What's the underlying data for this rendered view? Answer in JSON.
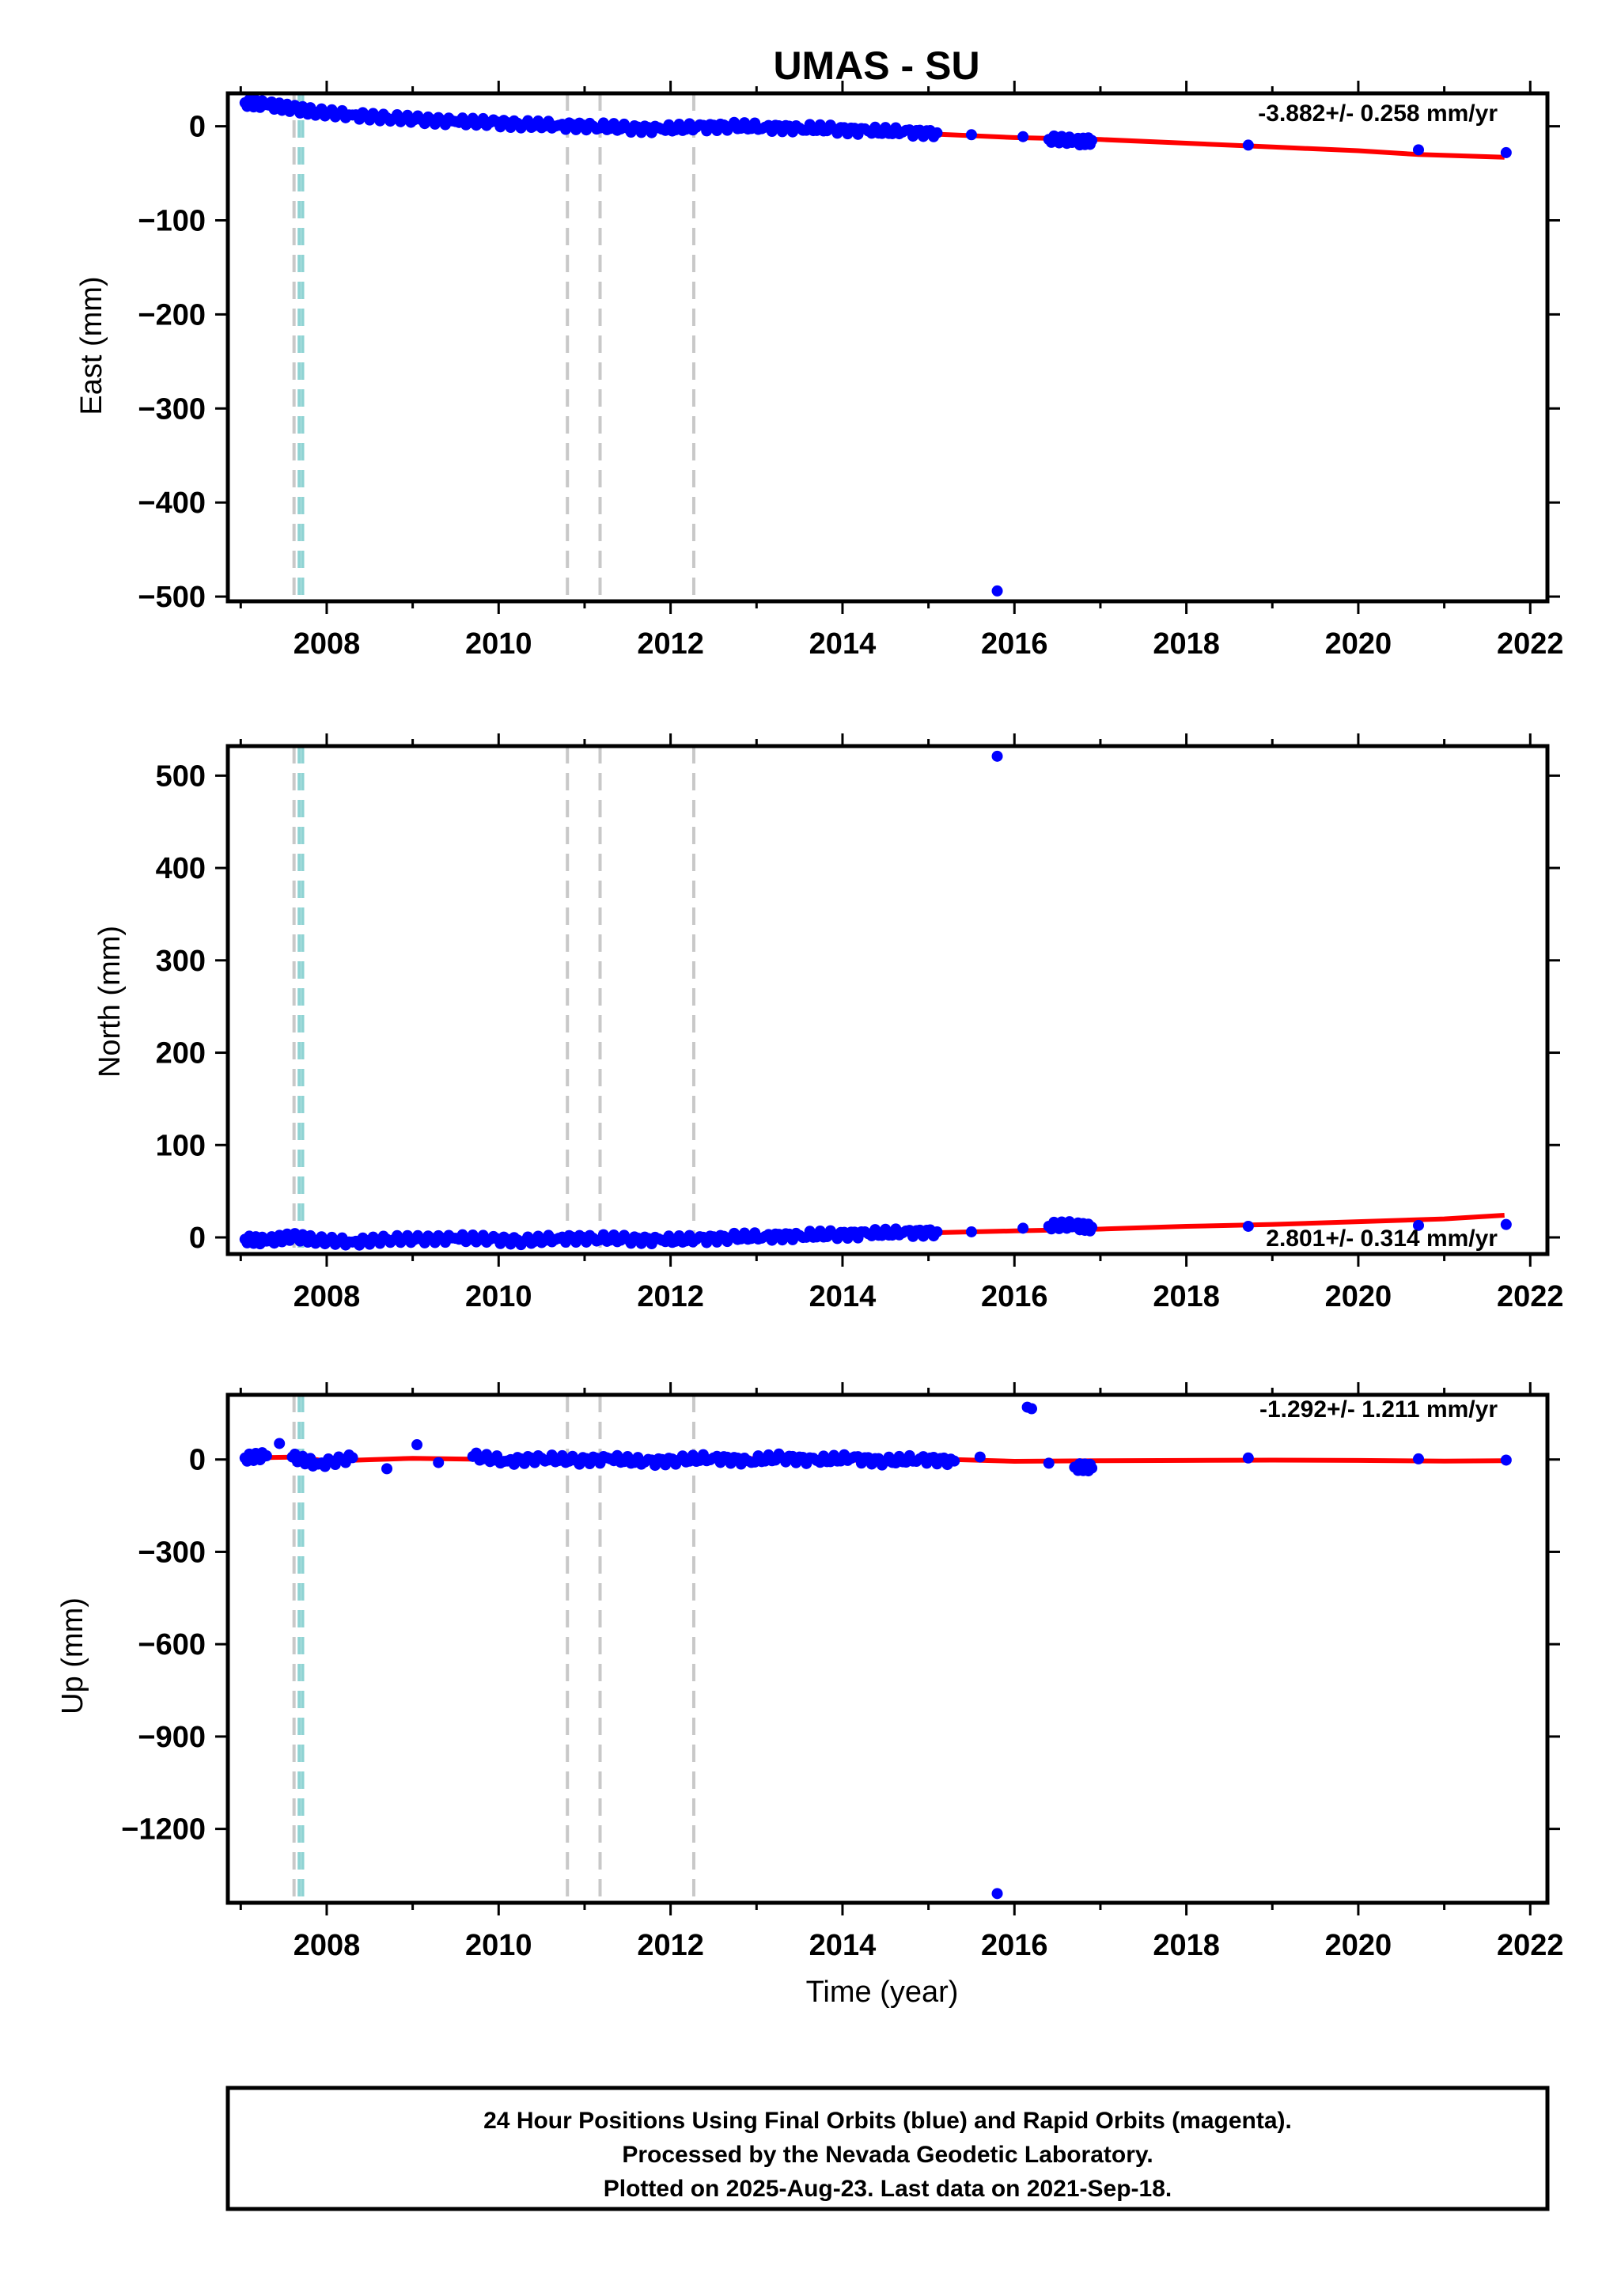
{
  "title": "UMAS - SU",
  "colors": {
    "final_orbit_points": "#0000ff",
    "model_line": "#ff0000",
    "equipment_change": "#c8c8c8",
    "earthquake": "#8fd3d3",
    "frame": "#000000"
  },
  "chart_data": [
    {
      "type": "scatter",
      "name": "east",
      "title": "UMAS - SU",
      "xlabel": "",
      "ylabel": "East (mm)",
      "xlim": [
        2006.85,
        2022.2
      ],
      "ylim": [
        -505,
        35
      ],
      "xticks": [
        2008,
        2010,
        2012,
        2014,
        2016,
        2018,
        2020,
        2022
      ],
      "yticks": [
        0,
        -100,
        -200,
        -300,
        -400,
        -500
      ],
      "ytick_labels": [
        "0",
        "−100",
        "−200",
        "−300",
        "−400",
        "−500"
      ],
      "rate_label": "-3.882+/- 0.258 mm/yr",
      "rate_position": "top-right",
      "equipment_changes": [
        2007.62,
        2010.8,
        2011.18,
        2012.27
      ],
      "earthquakes": [
        2007.68,
        2007.72
      ],
      "model": {
        "x": [
          2007.0,
          2007.67,
          2008.0,
          2009.0,
          2010.0,
          2011.0,
          2012.0,
          2012.3,
          2013.0,
          2014.0,
          2015.0,
          2016.0,
          2017.0,
          2018.0,
          2019.0,
          2020.0,
          2020.7,
          2021.7
        ],
        "y": [
          24,
          20,
          14,
          9,
          5,
          1,
          -3,
          1,
          -1,
          -4,
          -8,
          -12,
          -14,
          -18,
          -22,
          -26,
          -30,
          -33
        ]
      },
      "points": {
        "x": [
          2007.05,
          2007.3,
          2007.6,
          2007.9,
          2008.3,
          2008.7,
          2009.1,
          2009.5,
          2009.9,
          2010.3,
          2010.7,
          2011.1,
          2011.5,
          2011.9,
          2012.3,
          2012.7,
          2013.1,
          2013.5,
          2013.9,
          2014.3,
          2014.7,
          2015.1,
          2015.5,
          2015.8,
          2016.1,
          2016.4,
          2016.7,
          2016.9,
          2018.72,
          2020.7,
          2021.72
        ],
        "y": [
          25,
          23,
          19,
          15,
          12,
          9,
          7,
          5,
          4,
          2,
          1,
          0,
          -2,
          -3,
          -1,
          0,
          -1,
          -2,
          -3,
          -5,
          -6,
          -7,
          -9,
          -494,
          -11,
          -14,
          -16,
          -15,
          -20,
          -25,
          -28
        ]
      }
    },
    {
      "type": "scatter",
      "name": "north",
      "xlabel": "",
      "ylabel": "North (mm)",
      "xlim": [
        2006.85,
        2022.2
      ],
      "ylim": [
        -18,
        532
      ],
      "xticks": [
        2008,
        2010,
        2012,
        2014,
        2016,
        2018,
        2020,
        2022
      ],
      "yticks": [
        0,
        100,
        200,
        300,
        400,
        500
      ],
      "ytick_labels": [
        "0",
        "100",
        "200",
        "300",
        "400",
        "500"
      ],
      "rate_label": "2.801+/- 0.314 mm/yr",
      "rate_position": "bottom-right",
      "equipment_changes": [
        2007.62,
        2010.8,
        2011.18,
        2012.27
      ],
      "earthquakes": [
        2007.68,
        2007.72
      ],
      "model": {
        "x": [
          2007.0,
          2007.67,
          2008.0,
          2009.0,
          2010.0,
          2011.0,
          2012.0,
          2013.0,
          2014.0,
          2015.0,
          2016.0,
          2017.0,
          2018.0,
          2019.0,
          2020.0,
          2021.0,
          2021.7
        ],
        "y": [
          -3,
          0,
          -5,
          -2,
          -2,
          -1,
          -2,
          1,
          3,
          5,
          7,
          9,
          12,
          14,
          17,
          20,
          24
        ]
      },
      "points": {
        "x": [
          2007.05,
          2007.3,
          2007.6,
          2007.9,
          2008.3,
          2008.7,
          2009.1,
          2009.5,
          2009.9,
          2010.3,
          2010.7,
          2011.1,
          2011.5,
          2011.9,
          2012.3,
          2012.7,
          2013.1,
          2013.5,
          2013.9,
          2014.3,
          2014.7,
          2015.1,
          2015.5,
          2015.8,
          2016.1,
          2016.4,
          2016.7,
          2016.9,
          2018.72,
          2020.7,
          2021.72
        ],
        "y": [
          -2,
          -4,
          1,
          -3,
          -5,
          -2,
          -2,
          -1,
          -2,
          -4,
          -1,
          -1,
          -2,
          -3,
          -2,
          0,
          1,
          2,
          3,
          4,
          5,
          6,
          6,
          521,
          10,
          12,
          13,
          11,
          12,
          13,
          14
        ]
      }
    },
    {
      "type": "scatter",
      "name": "up",
      "xlabel": "Time (year)",
      "ylabel": "Up (mm)",
      "xlim": [
        2006.85,
        2022.2
      ],
      "ylim": [
        -1440,
        210
      ],
      "xticks": [
        2008,
        2010,
        2012,
        2014,
        2016,
        2018,
        2020,
        2022
      ],
      "yticks": [
        0,
        -300,
        -600,
        -900,
        -1200
      ],
      "ytick_labels": [
        "0",
        "−300",
        "−600",
        "−900",
        "−1200"
      ],
      "rate_label": "-1.292+/- 1.211 mm/yr",
      "rate_position": "top-right",
      "equipment_changes": [
        2007.62,
        2010.8,
        2011.18,
        2012.27
      ],
      "earthquakes": [
        2007.68,
        2007.72
      ],
      "model": {
        "x": [
          2007.0,
          2007.67,
          2008.0,
          2009.0,
          2010.0,
          2011.0,
          2012.0,
          2013.0,
          2014.0,
          2015.0,
          2016.0,
          2017.0,
          2018.0,
          2019.0,
          2020.0,
          2021.0,
          2021.7
        ],
        "y": [
          5,
          8,
          -5,
          4,
          0,
          2,
          -2,
          3,
          -3,
          2,
          -6,
          -4,
          -3,
          -2,
          -3,
          -5,
          -4
        ]
      },
      "points": {
        "x": [
          2007.05,
          2007.3,
          2007.45,
          2007.6,
          2007.9,
          2008.3,
          2008.7,
          2009.05,
          2009.3,
          2009.7,
          2010.1,
          2010.5,
          2010.9,
          2011.3,
          2011.7,
          2012.1,
          2012.5,
          2012.9,
          2013.3,
          2013.7,
          2014.1,
          2014.5,
          2014.9,
          2015.3,
          2015.6,
          2015.8,
          2016.15,
          2016.2,
          2016.4,
          2016.7,
          2016.9,
          2018.72,
          2020.7,
          2021.72
        ],
        "y": [
          5,
          12,
          52,
          8,
          -15,
          6,
          -30,
          48,
          -10,
          10,
          -5,
          4,
          -3,
          2,
          -8,
          -2,
          5,
          -4,
          6,
          -3,
          4,
          -6,
          2,
          -5,
          8,
          -1410,
          170,
          165,
          -12,
          -25,
          -28,
          5,
          2,
          -2
        ]
      }
    }
  ],
  "caption": {
    "line1": "24 Hour Positions Using Final Orbits (blue) and Rapid Orbits (magenta).",
    "line2": "Processed by the Nevada Geodetic Laboratory.",
    "line3": "Plotted on 2025-Aug-23. Last data on 2021-Sep-18."
  }
}
